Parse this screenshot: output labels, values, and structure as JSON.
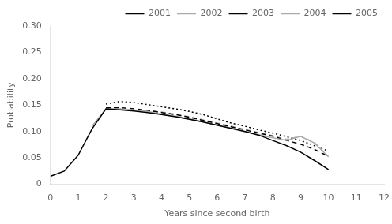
{
  "chart_data": {
    "type": "line",
    "xlabel": "Years since second birth",
    "ylabel": "Probability",
    "xlim": [
      0,
      12
    ],
    "ylim": [
      0,
      0.3
    ],
    "xticks": [
      0,
      1,
      2,
      3,
      4,
      5,
      6,
      7,
      8,
      9,
      10,
      11,
      12
    ],
    "yticks": [
      0,
      0.05,
      {
        "value": 0.1,
        "label": "0.10"
      },
      0.15,
      {
        "value": 0.2,
        "label": "0.20"
      },
      0.25,
      {
        "value": 0.3,
        "label": "0.30"
      }
    ],
    "grid": false,
    "legend": "upper right",
    "series": [
      {
        "name": "2001",
        "color": "#000000",
        "line_style": "solid",
        "x": [
          0,
          0.5,
          1.0,
          1.5,
          2.0,
          2.5,
          3.0,
          3.5,
          4.0,
          4.5,
          5.0,
          5.5,
          6.0,
          6.5,
          7.0,
          7.5,
          8.0,
          8.5,
          9.0,
          9.5,
          10.0
        ],
        "values": [
          0.015,
          0.025,
          0.055,
          0.105,
          0.143,
          0.141,
          0.139,
          0.136,
          0.132,
          0.128,
          0.123,
          0.118,
          0.112,
          0.106,
          0.1,
          0.093,
          0.083,
          0.073,
          0.061,
          0.045,
          0.028
        ]
      },
      {
        "name": "2002",
        "color": "#aaaaaa",
        "line_style": "solid",
        "x": [
          1.5,
          2.0,
          2.5,
          3.0,
          3.5,
          4.0,
          4.5,
          5.0,
          5.5,
          6.0,
          6.5,
          7.0,
          7.5,
          8.0,
          8.5,
          9.0,
          9.5,
          10.0
        ],
        "values": [
          0.11,
          0.143,
          0.143,
          0.141,
          0.138,
          0.133,
          0.129,
          0.124,
          0.118,
          0.112,
          0.106,
          0.1,
          0.094,
          0.088,
          0.083,
          0.091,
          0.078,
          0.052
        ]
      },
      {
        "name": "2003",
        "color": "#000000",
        "line_style": "dashed",
        "x": [
          2.0,
          2.5,
          3.0,
          3.5,
          4.0,
          4.5,
          5.0,
          5.5,
          6.0,
          6.5,
          7.0,
          7.5,
          8.0,
          8.5,
          9.0,
          9.5,
          10.0
        ],
        "values": [
          0.145,
          0.145,
          0.143,
          0.14,
          0.136,
          0.132,
          0.127,
          0.121,
          0.115,
          0.109,
          0.103,
          0.097,
          0.091,
          0.083,
          0.076,
          0.066,
          0.053
        ]
      },
      {
        "name": "2004",
        "color": "#aaaaaa",
        "line_style": "dashed",
        "x": [
          2.0,
          2.5,
          3.0,
          3.5,
          4.0,
          4.5,
          5.0,
          5.5,
          6.0,
          6.5,
          7.0,
          7.5,
          8.0,
          8.5,
          9.0,
          9.5,
          10.0
        ],
        "values": [
          0.143,
          0.145,
          0.143,
          0.14,
          0.137,
          0.133,
          0.128,
          0.122,
          0.116,
          0.11,
          0.104,
          0.098,
          0.092,
          0.085,
          0.091,
          0.079,
          0.052
        ]
      },
      {
        "name": "2005",
        "color": "#000000",
        "line_style": "dotted",
        "x": [
          2.0,
          2.5,
          3.0,
          3.5,
          4.0,
          4.5,
          5.0,
          5.5,
          6.0,
          6.5,
          7.0,
          7.5,
          8.0,
          8.5,
          9.0,
          9.5,
          10.0
        ],
        "values": [
          0.152,
          0.157,
          0.155,
          0.151,
          0.147,
          0.143,
          0.138,
          0.132,
          0.124,
          0.116,
          0.11,
          0.103,
          0.097,
          0.09,
          0.083,
          0.073,
          0.063
        ]
      }
    ]
  }
}
